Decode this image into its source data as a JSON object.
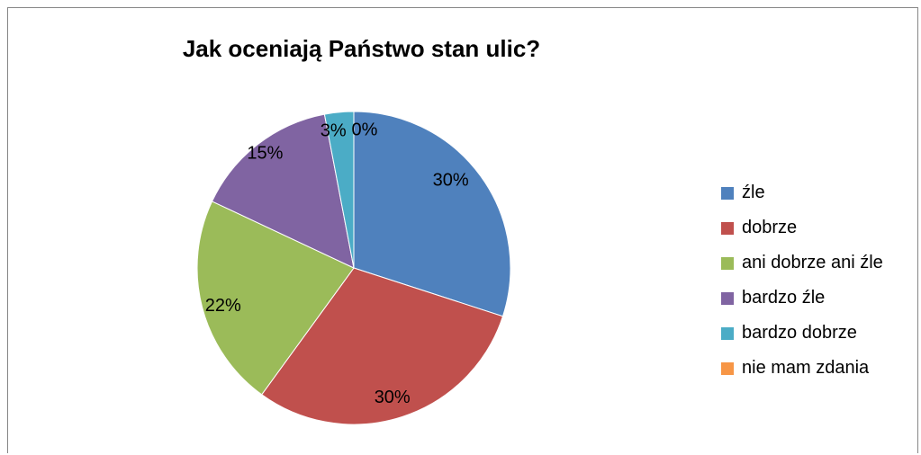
{
  "chart_data": {
    "type": "pie",
    "title": "Jak oceniają Państwo stan ulic?",
    "legend_position": "right",
    "slices": [
      {
        "label": "źle",
        "value": 30,
        "display": "30%",
        "color": "#4F81BD"
      },
      {
        "label": "dobrze",
        "value": 30,
        "display": "30%",
        "color": "#C0504D"
      },
      {
        "label": "ani dobrze ani źle",
        "value": 22,
        "display": "22%",
        "color": "#9BBB59"
      },
      {
        "label": "bardzo źle",
        "value": 15,
        "display": "15%",
        "color": "#8064A2"
      },
      {
        "label": "bardzo dobrze",
        "value": 3,
        "display": "3%",
        "color": "#4BACC6"
      },
      {
        "label": "nie mam zdania",
        "value": 0,
        "display": "0%",
        "color": "#F79646"
      }
    ]
  }
}
